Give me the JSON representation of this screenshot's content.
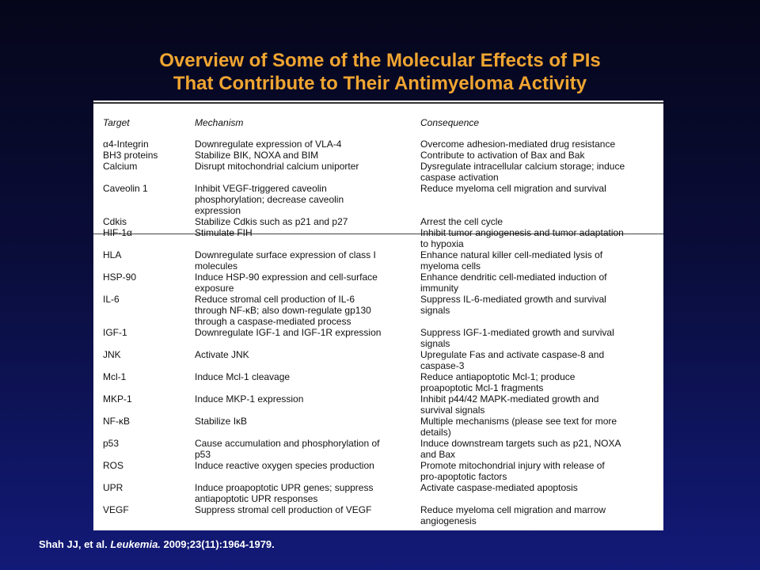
{
  "slide": {
    "title_line1": "Overview of Some of the Molecular Effects of PIs",
    "title_line2": "That Contribute to Their Antimyeloma Activity",
    "colors": {
      "title": "#f0a531",
      "background_top": "#05061a",
      "background_bottom": "#121a78",
      "citation": "#ffffff"
    }
  },
  "table": {
    "headers": {
      "target": "Target",
      "mechanism": "Mechanism",
      "consequence": "Consequence"
    },
    "rows": [
      {
        "target": "α4-Integrin",
        "mechanism": "Downregulate expression of VLA-4",
        "consequence": "Overcome adhesion-mediated drug resistance"
      },
      {
        "target": "BH3 proteins",
        "mechanism": "Stabilize BIK, NOXA and BIM",
        "consequence": "Contribute to activation of Bax and Bak"
      },
      {
        "target": "Calcium",
        "mechanism": "Disrupt mitochondrial calcium uniporter",
        "consequence": "Dysregulate intracellular calcium storage; induce\ncaspase activation"
      },
      {
        "target": "Caveolin 1",
        "mechanism": "Inhibit VEGF-triggered caveolin\nphosphorylation; decrease caveolin\nexpression",
        "consequence": "Reduce myeloma cell migration and survival"
      },
      {
        "target": "Cdkis",
        "mechanism": "Stabilize Cdkis such as p21 and p27",
        "consequence": "Arrest the cell cycle"
      },
      {
        "target": "HIF-1α",
        "mechanism": "Stimulate FIH",
        "consequence": "Inhibit tumor angiogenesis and tumor adaptation\nto hypoxia"
      },
      {
        "target": "HLA",
        "mechanism": "Downregulate surface expression of class I\nmolecules",
        "consequence": "Enhance natural killer cell-mediated lysis of\nmyeloma cells"
      },
      {
        "target": "HSP-90",
        "mechanism": "Induce HSP-90 expression and cell-surface\nexposure",
        "consequence": "Enhance dendritic cell-mediated induction of\nimmunity"
      },
      {
        "target": "IL-6",
        "mechanism": "Reduce stromal cell production of IL-6\nthrough NF-κB; also down-regulate gp130\nthrough a caspase-mediated process",
        "consequence": "Suppress IL-6-mediated growth and survival\nsignals"
      },
      {
        "target": "IGF-1",
        "mechanism": "Downregulate IGF-1 and IGF-1R expression",
        "consequence": "Suppress IGF-1-mediated growth and survival\nsignals"
      },
      {
        "target": "JNK",
        "mechanism": "Activate JNK",
        "consequence": "Upregulate Fas and activate caspase-8 and\ncaspase-3"
      },
      {
        "target": "Mcl-1",
        "mechanism": "Induce Mcl-1 cleavage",
        "consequence": "Reduce antiapoptotic Mcl-1; produce\nproapoptotic Mcl-1 fragments"
      },
      {
        "target": "MKP-1",
        "mechanism": "Induce MKP-1 expression",
        "consequence": "Inhibit p44/42 MAPK-mediated growth and\nsurvival signals"
      },
      {
        "target": "NF-κB",
        "mechanism": "Stabilize IκB",
        "consequence": "Multiple mechanisms (please see text for more\ndetails)"
      },
      {
        "target": "p53",
        "mechanism": "Cause accumulation and phosphorylation of\np53",
        "consequence": "Induce downstream targets such as p21, NOXA\nand Bax"
      },
      {
        "target": "ROS",
        "mechanism": "Induce reactive oxygen species production",
        "consequence": "Promote mitochondrial injury with release of\npro-apoptotic factors"
      },
      {
        "target": "UPR",
        "mechanism": "Induce proapoptotic UPR genes; suppress\nantiapoptotic UPR responses",
        "consequence": "Activate caspase-mediated apoptosis"
      },
      {
        "target": "VEGF",
        "mechanism": "Suppress stromal cell production of VEGF",
        "consequence": "Reduce myeloma cell migration and marrow\nangiogenesis"
      }
    ]
  },
  "citation": {
    "authors": "Shah JJ, et al.",
    "journal": "Leukemia.",
    "details": "2009;23(11):1964-1979."
  }
}
